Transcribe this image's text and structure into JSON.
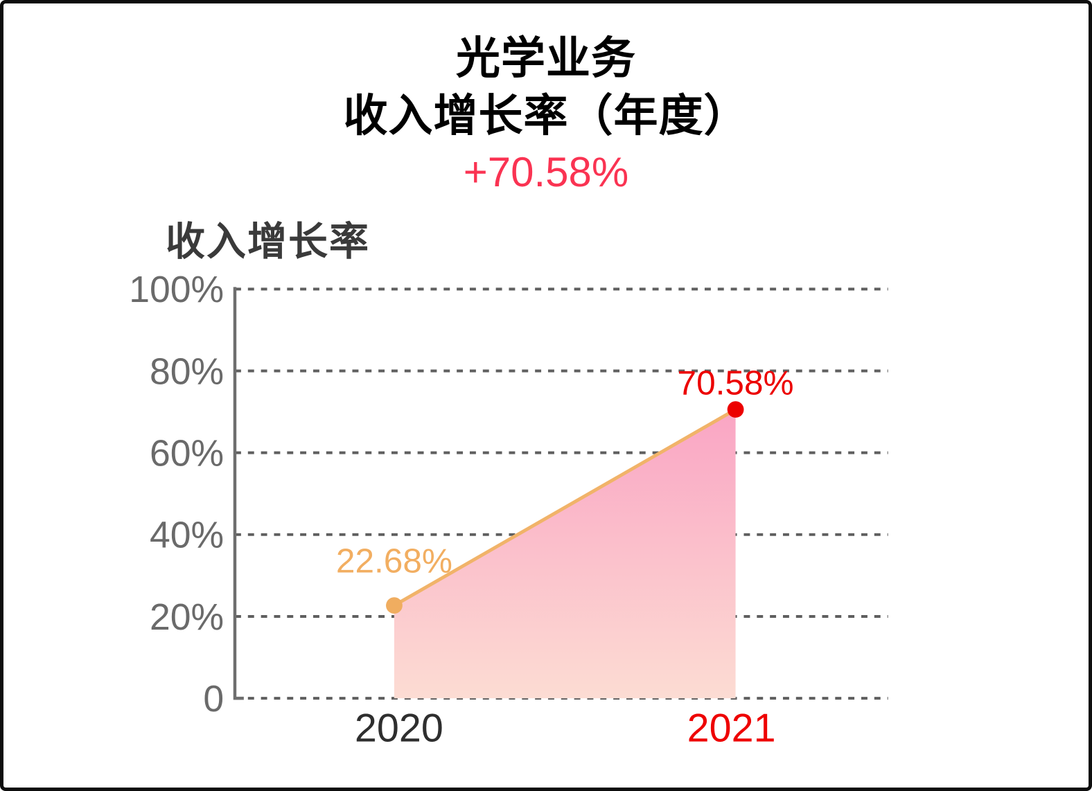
{
  "header": {
    "title_line1": "光学业务",
    "title_line2": "收入增长率（年度）",
    "highlight": "+70.58%"
  },
  "section": {
    "label": "收入增长率"
  },
  "chart_data": {
    "type": "area",
    "title": "收入增长率",
    "x": [
      "2020",
      "2021"
    ],
    "series": [
      {
        "name": "收入增长率",
        "values": [
          22.68,
          70.58
        ],
        "point_labels": [
          "22.68%",
          "70.58%"
        ],
        "point_colors": [
          "#F0AD60",
          "#EC0000"
        ],
        "label_colors": [
          "#F2AE61",
          "#EC0000"
        ],
        "line_color": "#F1B369",
        "area_gradient_top": "#FAA5C4",
        "area_gradient_bottom": "#FCDCD3"
      }
    ],
    "xlabel_colors": [
      "#2E2E2E",
      "#EE0000"
    ],
    "ylim": [
      0,
      100
    ],
    "yticks": [
      0,
      20,
      40,
      60,
      80,
      100
    ],
    "ytick_labels": [
      "0",
      "20%",
      "40%",
      "60%",
      "80%",
      "100%"
    ],
    "grid": "horizontal-dashed",
    "legend": "none"
  },
  "colors": {
    "highlight_text": "#FA3352",
    "title_text": "#000000",
    "section_text": "#3A3A3A",
    "axis": "#6E6E6E",
    "grid": "#5F5F5F",
    "tick_text": "#6A6A6A"
  }
}
